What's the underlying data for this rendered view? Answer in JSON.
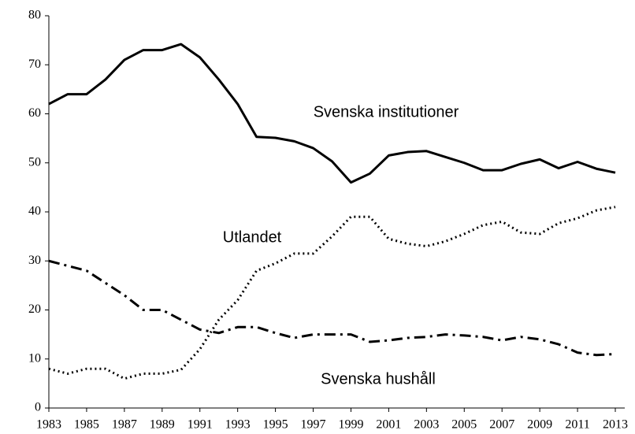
{
  "chart_data": {
    "type": "line",
    "x": [
      1983,
      1984,
      1985,
      1986,
      1987,
      1988,
      1989,
      1990,
      1991,
      1992,
      1993,
      1994,
      1995,
      1996,
      1997,
      1998,
      1999,
      2000,
      2001,
      2002,
      2003,
      2004,
      2005,
      2006,
      2007,
      2008,
      2009,
      2010,
      2011,
      2012,
      2013
    ],
    "series": [
      {
        "name": "Svenska institutioner",
        "color": "#000000",
        "dash": "solid",
        "values": [
          62,
          64,
          64,
          67,
          71,
          73,
          73,
          74.2,
          71.5,
          67,
          62,
          55.3,
          55.1,
          54.4,
          53,
          50.3,
          46,
          47.8,
          51.5,
          52.2,
          52.4,
          51.2,
          50,
          48.5,
          48.5,
          49.8,
          50.7,
          48.9,
          50.2,
          48.8,
          48
        ]
      },
      {
        "name": "Utlandet",
        "color": "#000000",
        "dash": "dotted",
        "values": [
          8,
          7,
          8,
          8,
          6,
          7,
          7,
          7.8,
          12,
          18,
          22,
          28,
          29.5,
          31.5,
          31.5,
          35,
          39,
          39,
          34.5,
          33.5,
          33,
          34,
          35.5,
          37.3,
          38,
          35.8,
          35.5,
          37.7,
          38.7,
          40.3,
          41
        ]
      },
      {
        "name": "Svenska hushåll",
        "color": "#000000",
        "dash": "dashdot",
        "values": [
          30,
          29,
          28,
          25.5,
          23,
          20,
          20,
          18,
          16,
          15.3,
          16.5,
          16.5,
          15.3,
          14.3,
          15,
          15,
          15,
          13.5,
          13.8,
          14.3,
          14.5,
          15,
          14.8,
          14.5,
          13.8,
          14.5,
          14,
          13,
          11.3,
          10.8,
          11
        ]
      }
    ],
    "xlim": [
      1983,
      2013
    ],
    "xticks": [
      1983,
      1985,
      1987,
      1989,
      1991,
      1993,
      1995,
      1997,
      1999,
      2001,
      2003,
      2005,
      2007,
      2009,
      2011,
      2013
    ],
    "ylim": [
      0,
      80
    ],
    "yticks": [
      0,
      10,
      20,
      30,
      40,
      50,
      60,
      70,
      80
    ]
  }
}
